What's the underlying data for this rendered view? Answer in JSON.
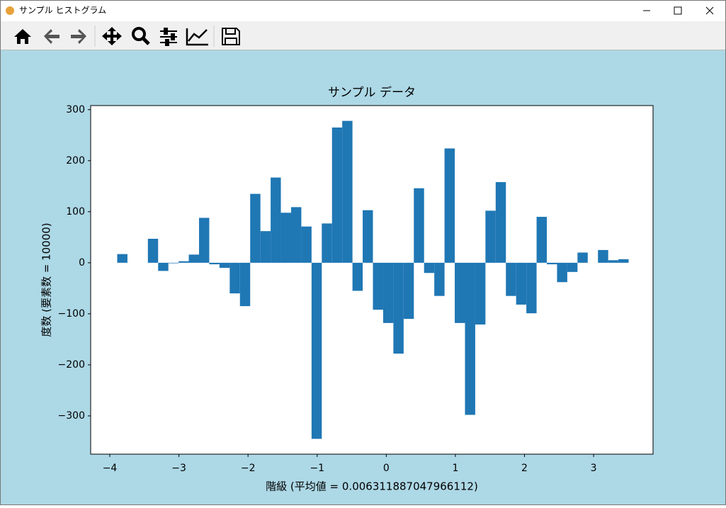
{
  "window": {
    "title": "サンプル ヒストグラム"
  },
  "chart_data": {
    "type": "histogram",
    "title": "サンプル データ",
    "x_label": "階級 (平均値 = 0.006311887047966112)",
    "y_label": "度数 (要素数 = 10000)",
    "color": "#1f77b4",
    "bins": [
      -3.893,
      -3.745,
      -3.597,
      -3.449,
      -3.301,
      -3.153,
      -3.005,
      -2.857,
      -2.709,
      -2.561,
      -2.413,
      -2.265,
      -2.117,
      -1.969,
      -1.821,
      -1.673,
      -1.525,
      -1.377,
      -1.229,
      -1.081,
      -0.933,
      -0.785,
      -0.637,
      -0.489,
      -0.341,
      -0.193,
      -0.045,
      0.103,
      0.251,
      0.399,
      0.547,
      0.695,
      0.843,
      0.991,
      1.139,
      1.287,
      1.435,
      1.583,
      1.731,
      1.879,
      2.027,
      2.175,
      2.323,
      2.471,
      2.619,
      2.767,
      2.915,
      3.063,
      3.211,
      3.359,
      3.507
    ],
    "values": [
      17,
      0,
      0,
      47,
      -16,
      -1,
      3,
      16,
      88,
      -3,
      -10,
      -60,
      -85,
      135,
      62,
      167,
      98,
      109,
      71,
      -345,
      77,
      265,
      278,
      -55,
      103,
      -92,
      -118,
      -178,
      -110,
      146,
      -20,
      -65,
      224,
      -118,
      -298,
      -121,
      102,
      158,
      -65,
      -82,
      -99,
      90,
      -3,
      -38,
      -18,
      20,
      0,
      25,
      5,
      7
    ],
    "xlim": [
      -4.277,
      3.86
    ],
    "ylim": [
      -375,
      308
    ],
    "xticks": [
      {
        "value": -4,
        "label": "−4"
      },
      {
        "value": -3,
        "label": "−3"
      },
      {
        "value": -2,
        "label": "−2"
      },
      {
        "value": -1,
        "label": "−1"
      },
      0,
      1,
      2,
      3
    ],
    "yticks": [
      {
        "value": -300,
        "label": "−300"
      },
      {
        "value": -200,
        "label": "−200"
      },
      {
        "value": -100,
        "label": "−100"
      },
      0,
      100,
      200,
      300
    ]
  }
}
